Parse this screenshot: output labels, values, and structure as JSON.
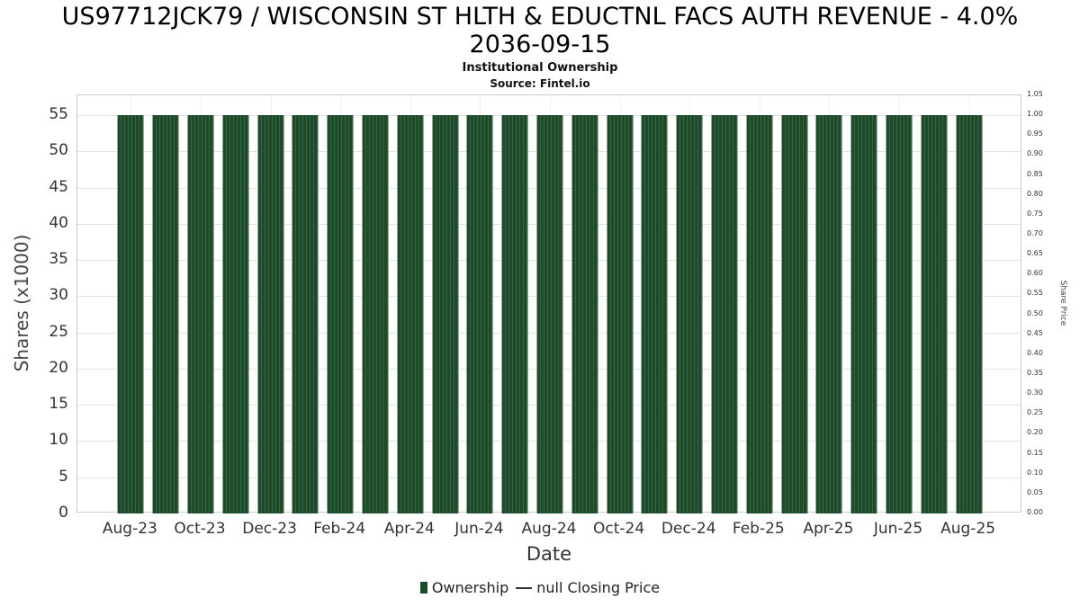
{
  "title": {
    "line1": "US97712JCK79 / WISCONSIN ST HLTH & EDUCTNL FACS AUTH REVENUE - 4.0%",
    "line2": "2036-09-15",
    "subtitle": "Institutional Ownership",
    "source": "Source: Fintel.io"
  },
  "chart_data": {
    "type": "bar",
    "title": "US97712JCK79 / WISCONSIN ST HLTH & EDUCTNL FACS AUTH REVENUE - 4.0% 2036-09-15",
    "subtitle": "Institutional Ownership",
    "source": "Source: Fintel.io",
    "xlabel": "Date",
    "ylabel_left": "Shares (x1000)",
    "ylabel_right": "Share Price",
    "categories": [
      "Aug-23",
      "Sep-23",
      "Oct-23",
      "Nov-23",
      "Dec-23",
      "Jan-24",
      "Feb-24",
      "Mar-24",
      "Apr-24",
      "May-24",
      "Jun-24",
      "Jul-24",
      "Aug-24",
      "Sep-24",
      "Oct-24",
      "Nov-24",
      "Dec-24",
      "Jan-25",
      "Feb-25",
      "Mar-25",
      "Apr-25",
      "May-25",
      "Jun-25",
      "Jul-25",
      "Aug-25"
    ],
    "values": [
      55,
      55,
      55,
      55,
      55,
      55,
      55,
      55,
      55,
      55,
      55,
      55,
      55,
      55,
      55,
      55,
      55,
      55,
      55,
      55,
      55,
      55,
      55,
      55,
      55
    ],
    "x_tick_labels": [
      "Aug-23",
      "Oct-23",
      "Dec-23",
      "Feb-24",
      "Apr-24",
      "Jun-24",
      "Aug-24",
      "Oct-24",
      "Dec-24",
      "Feb-25",
      "Apr-25",
      "Jun-25",
      "Aug-25"
    ],
    "x_tick_every": 2,
    "left_ticks": [
      0,
      5,
      10,
      15,
      20,
      25,
      30,
      35,
      40,
      45,
      50,
      55
    ],
    "right_ticks": [
      0,
      0.05,
      0.1,
      0.15,
      0.2,
      0.25,
      0.3,
      0.35,
      0.4,
      0.45,
      0.5,
      0.55,
      0.6,
      0.65,
      0.7,
      0.75,
      0.8,
      0.85,
      0.9,
      0.95,
      1.0,
      1.05
    ],
    "ylim_left": [
      0,
      57.75
    ],
    "ylim_right": [
      0,
      1.05
    ],
    "grid": true,
    "legend_position": "bottom",
    "colors": {
      "bar": "#1d4a2b",
      "bar_stripe": "#35643f",
      "grid": "#e2e2e2",
      "legend_line": "#333333"
    },
    "legend": [
      {
        "label": "Ownership",
        "marker": "bar",
        "color": "#1d4a2b"
      },
      {
        "label": "null Closing Price",
        "marker": "line",
        "color": "#333333"
      }
    ]
  }
}
